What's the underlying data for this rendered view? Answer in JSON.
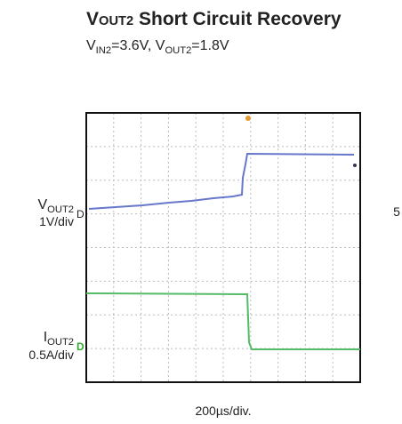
{
  "figure": {
    "title": {
      "lead": "V",
      "sub": "OUT2",
      "rest": " Short Circuit Recovery"
    },
    "subtitle": {
      "a": "V",
      "a_sub": "IN2",
      "a_rest": "=3.6V, V",
      "b_sub": "OUT2",
      "b_rest": "=1.8V"
    },
    "channel1": {
      "lead": "V",
      "sub": "OUT2",
      "scale": "1V/div"
    },
    "channel2": {
      "lead": "I",
      "sub": "OUT2",
      "scale": "0.5A/div"
    },
    "timebase": "200µs/div.",
    "page_marker": "5"
  }
}
